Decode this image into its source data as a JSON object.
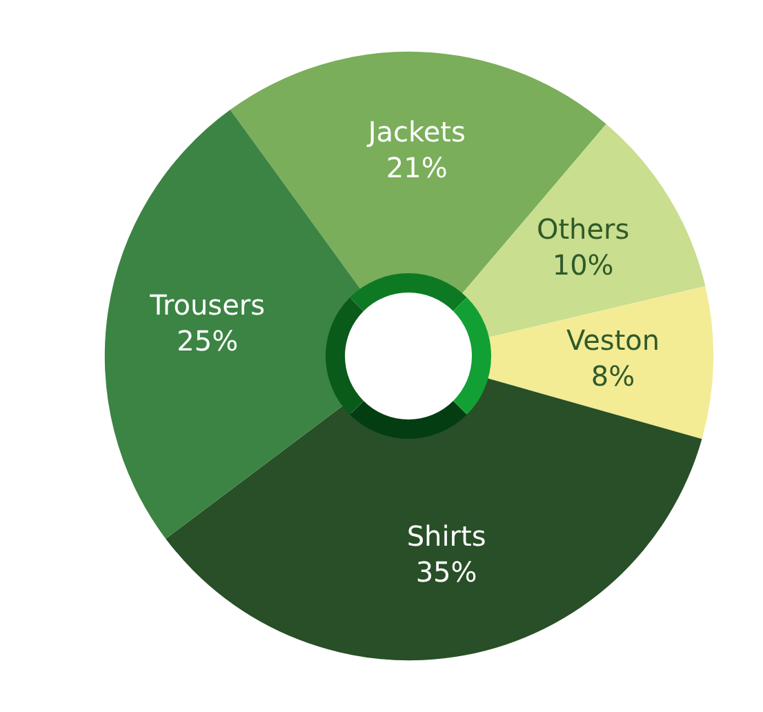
{
  "chart_data": {
    "type": "donut",
    "categories": [
      "Jackets",
      "Others",
      "Veston",
      "Shirts",
      "Trousers"
    ],
    "values": [
      21,
      10,
      8,
      35,
      25
    ],
    "value_labels": [
      "21%",
      "10%",
      "8%",
      "35%",
      "25%"
    ],
    "colors": [
      "#7aae5a",
      "#c9de8e",
      "#f3ec95",
      "#284f27",
      "#3b8444"
    ],
    "legend": false
  }
}
